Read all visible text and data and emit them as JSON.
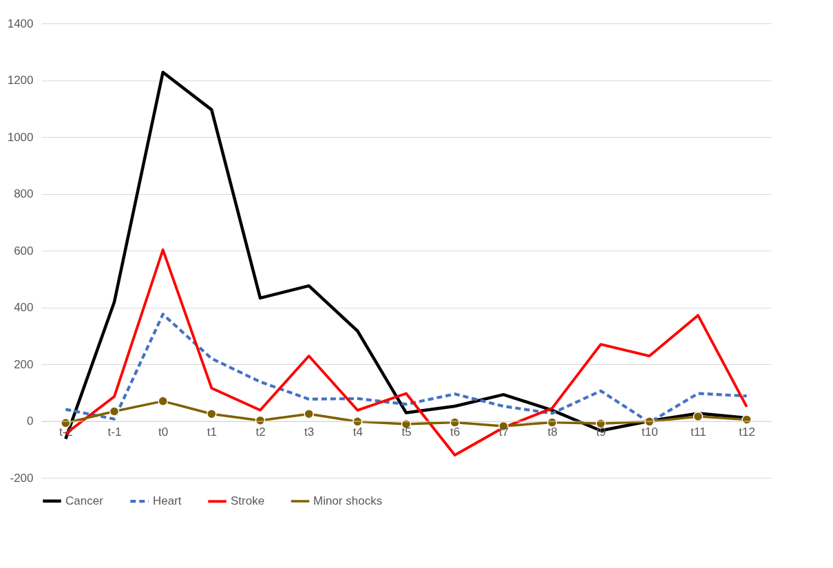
{
  "chart_data": {
    "type": "line",
    "categories": [
      "t-2",
      "t-1",
      "t0",
      "t1",
      "t2",
      "t3",
      "t4",
      "t5",
      "t6",
      "t7",
      "t8",
      "t9",
      "t10",
      "t11",
      "t12"
    ],
    "series": [
      {
        "name": "Cancer",
        "color": "#000000",
        "line_style": "solid",
        "marker": "none",
        "values": [
          -63,
          419,
          1228,
          1096,
          433,
          476,
          317,
          29,
          52,
          93,
          38,
          -34,
          0,
          27,
          11
        ]
      },
      {
        "name": "Heart",
        "color": "#4472c4",
        "line_style": "dashed",
        "marker": "none",
        "values": [
          41,
          7,
          376,
          220,
          138,
          77,
          79,
          59,
          95,
          52,
          27,
          106,
          -5,
          97,
          88
        ]
      },
      {
        "name": "Stroke",
        "color": "#ff0000",
        "line_style": "solid",
        "marker": "none",
        "values": [
          -45,
          86,
          603,
          116,
          38,
          229,
          38,
          97,
          -120,
          -23,
          45,
          270,
          229,
          372,
          50
        ]
      },
      {
        "name": "Minor shocks",
        "color": "#7f6000",
        "line_style": "solid",
        "marker": "circle",
        "values": [
          -7,
          34,
          70,
          25,
          2,
          25,
          -2,
          -11,
          -5,
          -18,
          -5,
          -9,
          -2,
          16,
          5
        ]
      }
    ],
    "ylim": [
      -200,
      1400
    ],
    "yticks": [
      -200,
      0,
      200,
      400,
      600,
      800,
      1000,
      1200,
      1400
    ],
    "grid": "y",
    "legend": "bottom"
  }
}
